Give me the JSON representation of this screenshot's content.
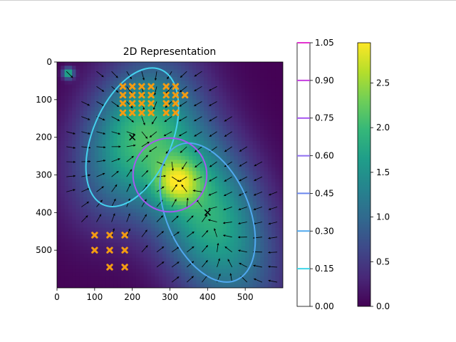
{
  "chart_data": {
    "type": "heatmap",
    "title": "2D Representation",
    "xlabel": "",
    "ylabel": "",
    "extent": {
      "x": [
        0,
        600
      ],
      "y": [
        0,
        600
      ]
    },
    "x_ticks": [
      0,
      100,
      200,
      300,
      400,
      500
    ],
    "y_ticks": [
      0,
      100,
      200,
      300,
      400,
      500
    ],
    "y_inverted": true,
    "colormap": "viridis",
    "gaussians": [
      {
        "cx": 200,
        "cy": 200,
        "sx": 95,
        "sy": 150,
        "angle": 23,
        "amp": 1.6
      },
      {
        "cx": 400,
        "cy": 400,
        "sx": 100,
        "sy": 190,
        "angle": -23,
        "amp": 1.9
      },
      {
        "cx": 320,
        "cy": 320,
        "sx": 40,
        "sy": 40,
        "angle": 0,
        "amp": 1.2
      },
      {
        "cx": 30,
        "cy": 30,
        "sx": 10,
        "sy": 10,
        "angle": 0,
        "amp": 2.0
      }
    ],
    "contour_ellipses": [
      {
        "cx": 200,
        "cy": 200,
        "rx": 105,
        "ry": 195,
        "angle": 23,
        "level": 0.15,
        "color": "#45d2ee"
      },
      {
        "cx": 400,
        "cy": 400,
        "rx": 110,
        "ry": 195,
        "angle": -23,
        "level": 0.3,
        "color": "#51a8ef"
      },
      {
        "cx": 300,
        "cy": 300,
        "rx": 98,
        "ry": 98,
        "angle": 0,
        "level": 0.6,
        "color": "#a45af0"
      }
    ],
    "centers": [
      {
        "x": 200,
        "y": 200
      },
      {
        "x": 400,
        "y": 400
      }
    ],
    "cross_markers": [
      {
        "x": 175,
        "y": 65
      },
      {
        "x": 200,
        "y": 65
      },
      {
        "x": 225,
        "y": 65
      },
      {
        "x": 250,
        "y": 65
      },
      {
        "x": 290,
        "y": 65
      },
      {
        "x": 315,
        "y": 65
      },
      {
        "x": 175,
        "y": 88
      },
      {
        "x": 200,
        "y": 88
      },
      {
        "x": 225,
        "y": 88
      },
      {
        "x": 250,
        "y": 88
      },
      {
        "x": 290,
        "y": 88
      },
      {
        "x": 315,
        "y": 88
      },
      {
        "x": 340,
        "y": 88
      },
      {
        "x": 175,
        "y": 110
      },
      {
        "x": 200,
        "y": 110
      },
      {
        "x": 225,
        "y": 110
      },
      {
        "x": 250,
        "y": 110
      },
      {
        "x": 290,
        "y": 110
      },
      {
        "x": 315,
        "y": 110
      },
      {
        "x": 175,
        "y": 135
      },
      {
        "x": 200,
        "y": 135
      },
      {
        "x": 225,
        "y": 135
      },
      {
        "x": 250,
        "y": 135
      },
      {
        "x": 290,
        "y": 135
      },
      {
        "x": 315,
        "y": 135
      },
      {
        "x": 100,
        "y": 460
      },
      {
        "x": 140,
        "y": 460
      },
      {
        "x": 180,
        "y": 460
      },
      {
        "x": 100,
        "y": 500
      },
      {
        "x": 140,
        "y": 500
      },
      {
        "x": 180,
        "y": 500
      },
      {
        "x": 140,
        "y": 545
      },
      {
        "x": 180,
        "y": 545
      }
    ],
    "marker_color": "#f39c12",
    "arrow_grid": {
      "start": 25,
      "step": 40,
      "min_value": 0.3
    },
    "colorbar_contour": {
      "ticks": [
        "0.00",
        "0.15",
        "0.30",
        "0.45",
        "0.60",
        "0.75",
        "0.90",
        "1.05"
      ],
      "range": [
        0,
        1.05
      ],
      "levels": [
        {
          "value": 0.15,
          "color": "#3fd6e8"
        },
        {
          "value": 0.3,
          "color": "#52a9ee"
        },
        {
          "value": 0.45,
          "color": "#6b86ee"
        },
        {
          "value": 0.6,
          "color": "#8e6ef0"
        },
        {
          "value": 0.75,
          "color": "#a653f0"
        },
        {
          "value": 0.9,
          "color": "#c63fe0"
        },
        {
          "value": 1.05,
          "color": "#e433cf"
        }
      ]
    },
    "colorbar_heat": {
      "ticks": [
        "0.0",
        "0.5",
        "1.0",
        "1.5",
        "2.0",
        "2.5"
      ],
      "range": [
        0,
        2.95
      ]
    }
  }
}
